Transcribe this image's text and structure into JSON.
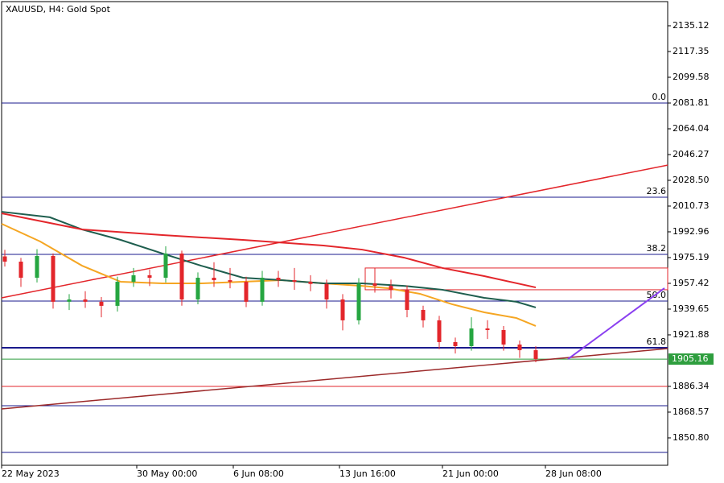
{
  "chart_data": {
    "type": "candlestick",
    "title": "XAUUSD, H4:  Gold Spot",
    "ylim": [
      1831.9,
      2151.78
    ],
    "xlim": [
      0,
      207
    ],
    "yticks": [
      2135.12,
      2117.35,
      2099.58,
      2081.81,
      2064.04,
      2046.27,
      {
        "value": 2028.5,
        "label": "2028.50"
      },
      2010.73,
      1992.96,
      1975.19,
      1957.42,
      1939.65,
      1921.88,
      1886.34,
      1868.57,
      {
        "value": 1850.8,
        "label": "1850.80"
      }
    ],
    "xticks": [
      {
        "value": 0,
        "label": "22 May 2023"
      },
      {
        "value": 42,
        "label": "30 May 00:00"
      },
      {
        "value": 72,
        "label": "6 Jun 08:00"
      },
      {
        "value": 105,
        "label": "13 Jun 16:00"
      },
      {
        "value": 137,
        "label": "21 Jun 00:00"
      },
      {
        "value": 169,
        "label": "28 Jun 08:00"
      }
    ],
    "up_color": "#26a641",
    "down_color": "#e3262b",
    "candles": {
      "x": [
        1,
        6,
        11,
        16,
        21,
        26,
        31,
        36,
        41,
        46,
        51,
        56,
        61,
        66,
        71,
        76,
        81,
        86,
        91,
        96,
        101,
        106,
        111,
        116,
        121,
        126,
        131,
        136,
        141,
        146,
        151,
        156,
        161,
        166
      ],
      "open": [
        1976.0,
        1972.4,
        1961.3,
        1976.3,
        1944.7,
        1946.3,
        1944.7,
        1941.9,
        1958.5,
        1963.0,
        1961.3,
        1978.0,
        1946.3,
        1961.3,
        1959.6,
        1958.5,
        1944.7,
        1961.3,
        1959.6,
        1958.5,
        1957.0,
        1946.3,
        1931.9,
        1957.4,
        1955.7,
        1953.0,
        1939.1,
        1931.9,
        1916.9,
        1914.1,
        1926.3,
        1925.2,
        1915.2,
        1911.3
      ],
      "high": [
        1980.5,
        1975.0,
        1981.0,
        1978.0,
        1950.0,
        1952.0,
        1948.0,
        1962.0,
        1968.0,
        1967.0,
        1983.0,
        1980.0,
        1965.0,
        1972.0,
        1968.0,
        1962.0,
        1966.0,
        1966.0,
        1968.0,
        1963.0,
        1960.0,
        1950.0,
        1961.0,
        1968.0,
        1960.0,
        1956.0,
        1942.0,
        1935.0,
        1920.0,
        1934.0,
        1932.0,
        1928.0,
        1918.0,
        1914.0
      ],
      "low": [
        1969.0,
        1955.0,
        1958.0,
        1940.0,
        1939.0,
        1940.5,
        1934.0,
        1938.0,
        1955.0,
        1955.5,
        1958.0,
        1942.0,
        1943.0,
        1955.0,
        1954.0,
        1941.0,
        1942.0,
        1955.0,
        1953.0,
        1952.0,
        1940.0,
        1925.0,
        1929.0,
        1951.0,
        1947.0,
        1934.0,
        1927.0,
        1912.0,
        1909.0,
        1911.0,
        1919.0,
        1911.0,
        1906.0,
        1903.0
      ],
      "close": [
        1972.4,
        1961.3,
        1976.3,
        1944.7,
        1946.3,
        1944.7,
        1941.9,
        1958.5,
        1963.0,
        1961.3,
        1978.0,
        1946.3,
        1961.3,
        1959.6,
        1958.5,
        1944.7,
        1961.3,
        1959.6,
        1958.5,
        1957.0,
        1946.3,
        1931.9,
        1957.4,
        1955.7,
        1953.0,
        1939.1,
        1931.9,
        1916.9,
        1914.1,
        1926.3,
        1925.2,
        1915.2,
        1911.3,
        1905.16
      ]
    },
    "moving_averages": [
      {
        "color": "#f5a623",
        "x": [
          0,
          12,
          25,
          37,
          50,
          62,
          75,
          87,
          100,
          112,
          120,
          130,
          140,
          150,
          160,
          166
        ],
        "values": [
          1998.5,
          1986.3,
          1969.6,
          1958.5,
          1957.4,
          1957.4,
          1958.5,
          1959.6,
          1957.4,
          1955.7,
          1954.1,
          1950.2,
          1943.0,
          1937.4,
          1933.5,
          1928.0
        ]
      },
      {
        "color": "#1e5e4e",
        "x": [
          0,
          15,
          25,
          37,
          50,
          62,
          75,
          87,
          100,
          112,
          125,
          137,
          150,
          160,
          166
        ],
        "values": [
          2006.8,
          2003.0,
          1994.6,
          1987.4,
          1978.0,
          1969.6,
          1961.3,
          1959.6,
          1957.4,
          1957.4,
          1955.7,
          1953.0,
          1947.4,
          1944.7,
          1940.8
        ]
      },
      {
        "color": "#e3262b",
        "x": [
          0,
          25,
          50,
          75,
          100,
          112,
          125,
          137,
          150,
          166
        ],
        "values": [
          2005.7,
          1994.6,
          1990.7,
          1987.4,
          1983.5,
          1980.7,
          1975.2,
          1968.0,
          1962.4,
          1954.6
        ]
      }
    ],
    "fib_levels": [
      {
        "value": 2081.81,
        "label": "0.0"
      },
      {
        "value": 2016.8,
        "label": "23.6"
      },
      {
        "value": 1977.4,
        "label": "38.2"
      },
      {
        "value": 1945.2,
        "label": "50.0"
      },
      {
        "value": 1913.0,
        "label": "61.8"
      }
    ],
    "fib_color": "#1a1a8c",
    "hlines": [
      {
        "value": 1886.34,
        "color": "#e3262b"
      },
      {
        "value": 1873.0,
        "color": "#1a1a8c"
      },
      {
        "value": 1840.8,
        "color": "#1a1a8c"
      }
    ],
    "trendlines": [
      {
        "color": "#e3262b",
        "x": [
          0,
          207
        ],
        "values": [
          1947.4,
          2039.0
        ]
      },
      {
        "color": "#9c2a2a",
        "x": [
          0,
          207
        ],
        "values": [
          1870.8,
          1912.4
        ]
      },
      {
        "color": "#8a3ff0",
        "x": [
          176,
          206
        ],
        "values": [
          1905.2,
          1954.1
        ]
      }
    ],
    "zone": {
      "color": "#e3262b",
      "x": [
        113,
        207
      ],
      "values": [
        1968.0,
        1953.0
      ]
    },
    "last_price": 1905.16,
    "last_price_color": "#2e9e3e"
  }
}
